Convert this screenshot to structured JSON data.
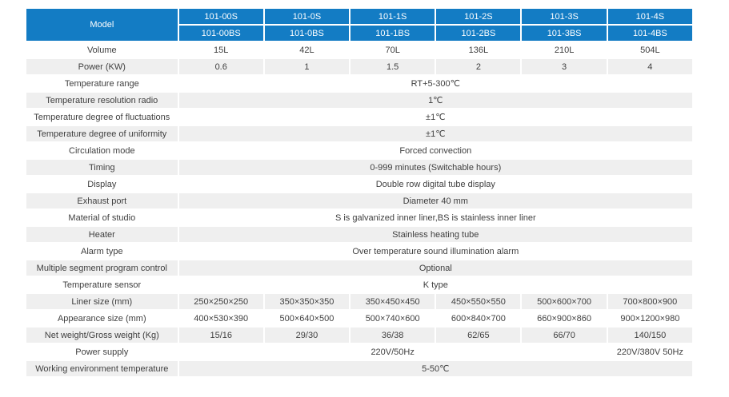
{
  "colors": {
    "header_blue": "#137cc4",
    "row_stripe_gray": "#efefef",
    "body_text": "#3f3f3f",
    "header_text": "#ffffff"
  },
  "table": {
    "header": {
      "model_label": "Model",
      "row_s": [
        "101-00S",
        "101-0S",
        "101-1S",
        "101-2S",
        "101-3S",
        "101-4S"
      ],
      "row_bs": [
        "101-00BS",
        "101-0BS",
        "101-1BS",
        "101-2BS",
        "101-3BS",
        "101-4BS"
      ]
    },
    "rows": [
      {
        "label": "Volume",
        "values": [
          "15L",
          "42L",
          "70L",
          "136L",
          "210L",
          "504L"
        ]
      },
      {
        "label": "Power (KW)",
        "values": [
          "0.6",
          "1",
          "1.5",
          "2",
          "3",
          "4"
        ]
      },
      {
        "label": "Temperature range",
        "value": "RT+5-300℃"
      },
      {
        "label": "Temperature resolution radio",
        "value": "1℃"
      },
      {
        "label": "Temperature degree of fluctuations",
        "value": "±1℃"
      },
      {
        "label": "Temperature degree of uniformity",
        "value": "±1℃"
      },
      {
        "label": "Circulation mode",
        "value": "Forced convection"
      },
      {
        "label": "Timing",
        "value": "0-999 minutes (Switchable hours)"
      },
      {
        "label": "Display",
        "value": "Double row digital tube display"
      },
      {
        "label": "Exhaust port",
        "value": "Diameter 40 mm"
      },
      {
        "label": "Material of studio",
        "value": "S is galvanized inner liner,BS is stainless inner liner"
      },
      {
        "label": "Heater",
        "value": "Stainless heating tube"
      },
      {
        "label": "Alarm type",
        "value": "Over temperature sound illumination alarm"
      },
      {
        "label": "Multiple segment program control",
        "value": "Optional"
      },
      {
        "label": "Temperature sensor",
        "value": "K type"
      },
      {
        "label": "Liner size (mm)",
        "values": [
          "250×250×250",
          "350×350×350",
          "350×450×450",
          "450×550×550",
          "500×600×700",
          "700×800×900"
        ]
      },
      {
        "label": "Appearance size (mm)",
        "values": [
          "400×530×390",
          "500×640×500",
          "500×740×600",
          "600×840×700",
          "660×900×860",
          "900×1200×980"
        ]
      },
      {
        "label": "Net weight/Gross weight (Kg)",
        "values": [
          "15/16",
          "29/30",
          "36/38",
          "62/65",
          "66/70",
          "140/150"
        ]
      },
      {
        "label": "Power supply",
        "value_main": "220V/50Hz",
        "value_last": "220V/380V  50Hz"
      },
      {
        "label": "Working environment temperature",
        "value": "5-50℃"
      }
    ]
  }
}
